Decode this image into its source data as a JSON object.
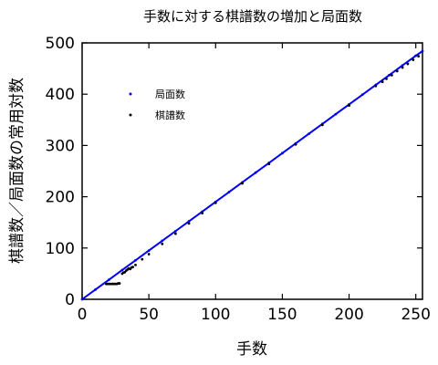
{
  "chart_data": {
    "type": "scatter",
    "title": "手数に対する棋譜数の増加と局面数",
    "xlabel": "手数",
    "ylabel": "棋譜数／局面数の常用対数",
    "xlim": [
      0,
      255
    ],
    "ylim": [
      0,
      500
    ],
    "xticks": [
      0,
      50,
      100,
      150,
      200,
      250
    ],
    "yticks": [
      0,
      100,
      200,
      300,
      400,
      500
    ],
    "grid": false,
    "legend_position": "upper-left",
    "series": [
      {
        "name": "局面数",
        "color": "#0000ff",
        "x": [
          0,
          10,
          20,
          30,
          40,
          50,
          60,
          70,
          80,
          90,
          100,
          110,
          120,
          130,
          140,
          150,
          160,
          170,
          180,
          190,
          200,
          210,
          220,
          230,
          240,
          250,
          255
        ],
        "y": [
          0,
          19,
          38,
          57,
          76,
          95,
          114,
          133,
          152,
          171,
          190,
          209,
          228,
          247,
          266,
          285,
          304,
          323,
          342,
          361,
          380,
          399,
          418,
          437,
          456,
          475,
          484
        ]
      },
      {
        "name": "棋譜数",
        "color": "#000000",
        "x": [
          18,
          19,
          20,
          21,
          22,
          23,
          24,
          25,
          26,
          27,
          28,
          30,
          31,
          32,
          33,
          34,
          35,
          36,
          37,
          38,
          40,
          45,
          50,
          60,
          70,
          80,
          90,
          100,
          120,
          140,
          160,
          180,
          200,
          220,
          225,
          228,
          232,
          236,
          240,
          244,
          248,
          252
        ],
        "y": [
          30,
          30,
          30,
          30,
          30,
          30,
          30,
          30,
          30,
          31,
          31,
          50,
          52,
          53,
          56,
          58,
          60,
          59,
          62,
          63,
          67,
          78,
          88,
          108,
          128,
          148,
          168,
          188,
          226,
          264,
          302,
          340,
          378,
          416,
          424,
          430,
          437,
          445,
          452,
          459,
          467,
          474
        ]
      }
    ]
  }
}
